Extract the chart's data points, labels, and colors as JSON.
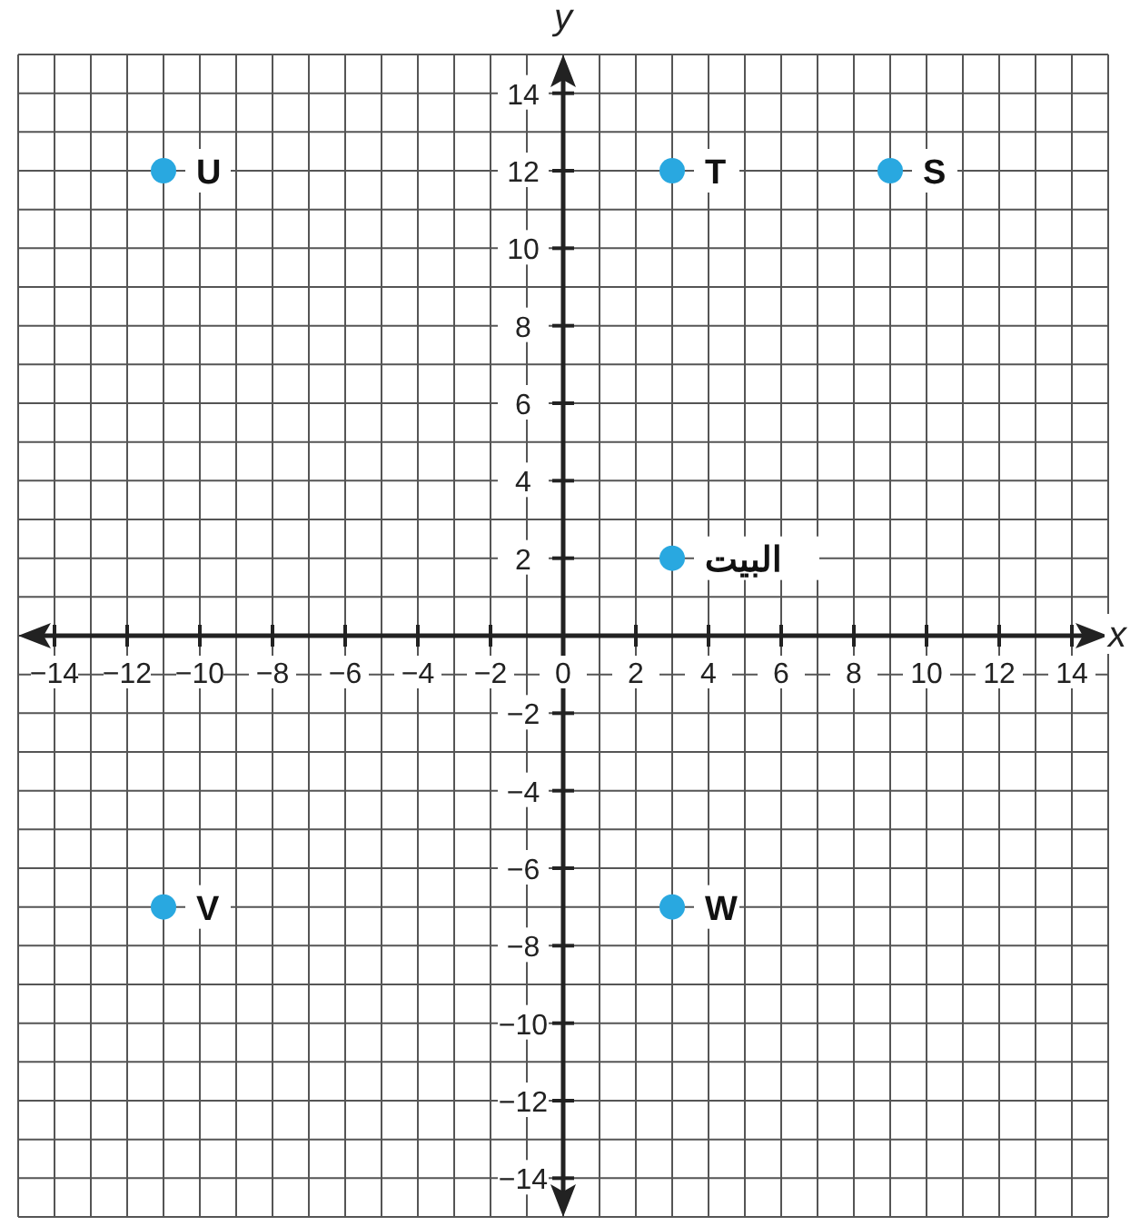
{
  "chart_data": {
    "type": "scatter",
    "xlabel": "x",
    "ylabel": "y",
    "x": [
      -11,
      3,
      9,
      3,
      -11,
      3
    ],
    "values": [
      12,
      12,
      12,
      2,
      -7,
      -7
    ],
    "color": "#29a8e0",
    "marker": "circle",
    "grid": true,
    "xlim": [
      -15,
      15
    ],
    "ylim": [
      -15,
      15
    ],
    "xticks": [
      {
        "value": -14,
        "label": "−14"
      },
      {
        "value": -12,
        "label": "−12"
      },
      {
        "value": -10,
        "label": "−10"
      },
      {
        "value": -8,
        "label": "−8"
      },
      {
        "value": -6,
        "label": "−6"
      },
      {
        "value": -4,
        "label": "−4"
      },
      {
        "value": -2,
        "label": "−2"
      },
      0,
      2,
      4,
      6,
      8,
      10,
      12,
      14
    ],
    "yticks": [
      {
        "value": -14,
        "label": "−14"
      },
      {
        "value": -12,
        "label": "−12"
      },
      {
        "value": -10,
        "label": "−10"
      },
      {
        "value": -8,
        "label": "−8"
      },
      {
        "value": -6,
        "label": "−6"
      },
      {
        "value": -4,
        "label": "−4"
      },
      {
        "value": -2,
        "label": "−2"
      },
      2,
      4,
      6,
      8,
      10,
      12,
      14
    ],
    "annotations": [
      {
        "text": "U",
        "x": -11,
        "y": 12
      },
      {
        "text": "T",
        "x": 3,
        "y": 12
      },
      {
        "text": "S",
        "x": 9,
        "y": 12
      },
      {
        "text": "البيت",
        "x": 3,
        "y": 2
      },
      {
        "text": "V",
        "x": -11,
        "y": -7
      },
      {
        "text": "W",
        "x": 3,
        "y": -7
      }
    ]
  }
}
